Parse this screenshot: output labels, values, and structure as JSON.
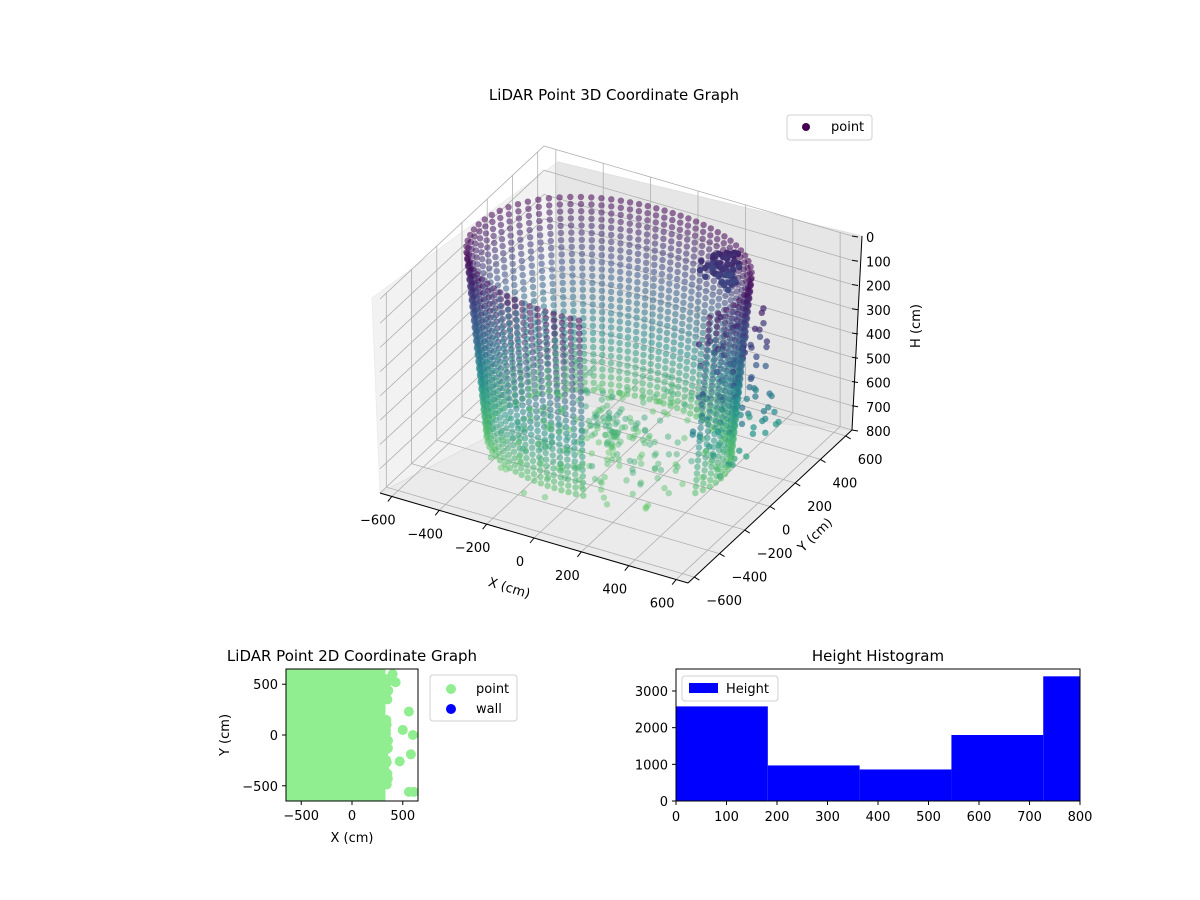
{
  "chart_data": [
    {
      "type": "scatter",
      "projection": "3d",
      "title": "LiDAR Point 3D Coordinate Graph",
      "xlabel": "X (cm)",
      "ylabel": "Y (cm)",
      "zlabel": "H (cm)",
      "xlim": [
        -650,
        650
      ],
      "ylim": [
        -650,
        650
      ],
      "zlim": [
        800,
        0
      ],
      "xticks": [
        "−600",
        "−400",
        "−200",
        "0",
        "200",
        "400",
        "600"
      ],
      "yticks": [
        "−600",
        "−400",
        "−200",
        "0",
        "200",
        "400",
        "600"
      ],
      "zticks": [
        "0",
        "100",
        "200",
        "300",
        "400",
        "500",
        "600",
        "700",
        "800"
      ],
      "legend": {
        "placement": "upper right",
        "entries": [
          {
            "label": "point",
            "color": "#440154"
          }
        ]
      },
      "grid": true,
      "colormap": "viridis",
      "series": [
        {
          "name": "point",
          "description": "Dense ring of LiDAR returns forming a cylindrical wall of radius about 550 cm; height ranges 0 to 800 cm; color encodes height (viridis).",
          "approx_radius_cm": 550,
          "h_range": [
            0,
            800
          ]
        }
      ]
    },
    {
      "type": "scatter",
      "title": "LiDAR Point 2D Coordinate Graph",
      "xlabel": "X (cm)",
      "ylabel": "Y (cm)",
      "xlim": [
        -650,
        650
      ],
      "ylim": [
        -650,
        650
      ],
      "xticks": [
        "−500",
        "0",
        "500"
      ],
      "yticks": [
        "−500",
        "0",
        "500"
      ],
      "legend": {
        "placement": "outside right",
        "entries": [
          {
            "label": "point",
            "color": "#90ee90"
          },
          {
            "label": "wall",
            "color": "#0000ff"
          }
        ]
      },
      "series": [
        {
          "name": "point",
          "color": "#90ee90",
          "description": "Filled region of points from x = -650 to about 330 cm across the full y range, with scattered points between 330 and 620 cm."
        },
        {
          "name": "wall",
          "color": "#0000ff",
          "values": []
        }
      ]
    },
    {
      "type": "bar",
      "subtype": "histogram",
      "title": "Height Histogram",
      "xlim": [
        0,
        800
      ],
      "ylim": [
        0,
        3600
      ],
      "xticks": [
        "0",
        "100",
        "200",
        "300",
        "400",
        "500",
        "600",
        "700",
        "800"
      ],
      "yticks": [
        "0",
        "1000",
        "2000",
        "3000"
      ],
      "legend": {
        "placement": "upper left",
        "entries": [
          {
            "label": "Height",
            "color": "#0000ff"
          }
        ]
      },
      "bins": [
        0,
        181.8,
        363.6,
        545.4,
        727.2,
        800
      ],
      "counts": [
        2580,
        970,
        860,
        1800,
        3400
      ],
      "color": "#0000ff"
    }
  ]
}
